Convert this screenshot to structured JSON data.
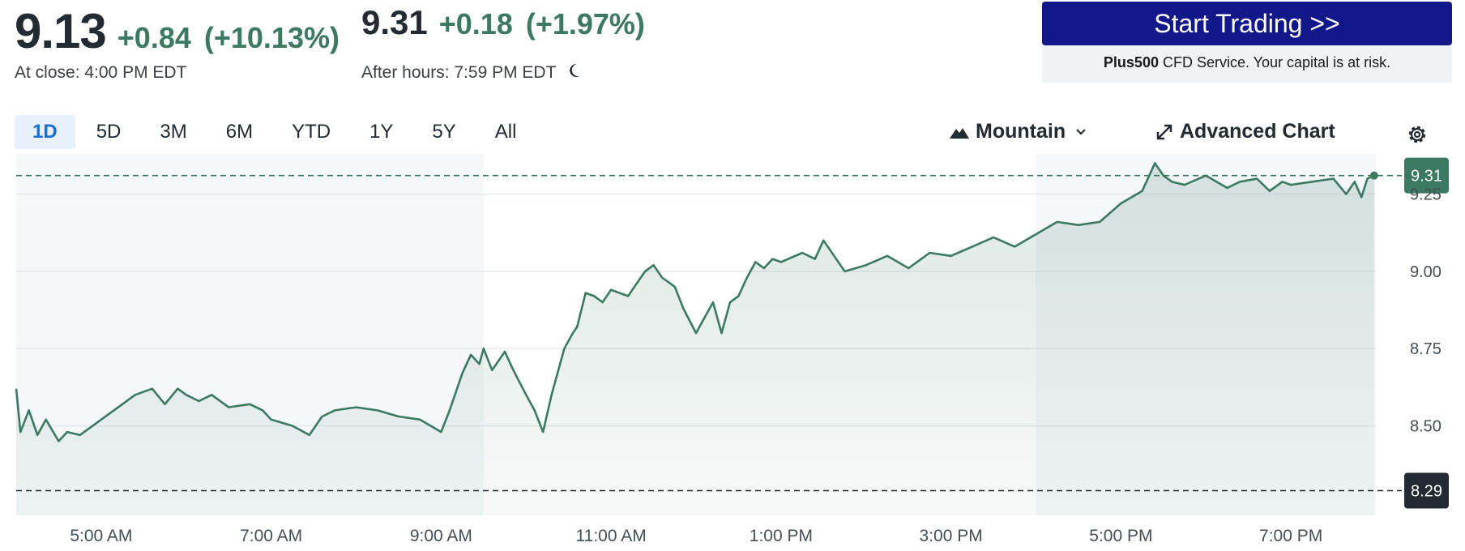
{
  "quote": {
    "close_price": "9.13",
    "close_change": "+0.84",
    "close_change_pct": "(+10.13%)",
    "close_label": "At close: 4:00 PM EDT",
    "after_price": "9.31",
    "after_change": "+0.18",
    "after_change_pct": "(+1.97%)",
    "after_label": "After hours: 7:59 PM EDT",
    "after_icon": "moon-icon"
  },
  "promo": {
    "button_label": "Start Trading >>",
    "brand": "Plus500",
    "disclaimer": " CFD Service. Your capital is at risk."
  },
  "ranges": [
    "1D",
    "5D",
    "3M",
    "6M",
    "YTD",
    "1Y",
    "5Y",
    "All"
  ],
  "active_range": "1D",
  "toolbar": {
    "chart_type_label": "Mountain",
    "chart_type_icon": "mountain-icon",
    "advanced_label": "Advanced Chart",
    "advanced_icon": "expand-icon",
    "settings_icon": "gear-icon"
  },
  "colors": {
    "line": "#3b7a61",
    "positive": "#3b7a61",
    "cta": "#12188a",
    "prev_close_badge": "#232a31",
    "shade": "#f5f7f9"
  },
  "chart_data": {
    "type": "area",
    "title": "",
    "xlabel": "",
    "ylabel": "",
    "x_ticks": [
      "5:00 AM",
      "7:00 AM",
      "9:00 AM",
      "11:00 AM",
      "1:00 PM",
      "3:00 PM",
      "5:00 PM",
      "7:00 PM"
    ],
    "y_ticks": [
      "8.50",
      "8.75",
      "9.00",
      "9.25"
    ],
    "ylim": [
      8.21,
      9.38
    ],
    "x_range": [
      "4:00 AM",
      "8:00 PM"
    ],
    "sessions": {
      "pre_market_end": "9:30 AM",
      "regular_end": "4:00 PM"
    },
    "reference_lines": [
      {
        "label": "9.31",
        "value": 9.31,
        "kind": "current"
      },
      {
        "label": "8.29",
        "value": 8.29,
        "kind": "previous_close"
      }
    ],
    "grid": true,
    "series": [
      {
        "x_hours": [
          4.0,
          4.05,
          4.15,
          4.25,
          4.35,
          4.5,
          4.6,
          4.75,
          5.0,
          5.25,
          5.4,
          5.6,
          5.75,
          5.9,
          6.0,
          6.15,
          6.3,
          6.5,
          6.75,
          6.9,
          7.0,
          7.25,
          7.45,
          7.6,
          7.75,
          8.0,
          8.25,
          8.5,
          8.75,
          9.0,
          9.1,
          9.25,
          9.35,
          9.45,
          9.5,
          9.6,
          9.75,
          9.85,
          10.0,
          10.1,
          10.2,
          10.3,
          10.45,
          10.55,
          10.6,
          10.7,
          10.8,
          10.9,
          11.0,
          11.2,
          11.4,
          11.5,
          11.6,
          11.75,
          11.85,
          12.0,
          12.1,
          12.2,
          12.3,
          12.4,
          12.5,
          12.6,
          12.7,
          12.8,
          12.9,
          13.0,
          13.25,
          13.4,
          13.5,
          13.75,
          14.0,
          14.25,
          14.5,
          14.75,
          15.0,
          15.25,
          15.5,
          15.75,
          16.0,
          16.25,
          16.5,
          16.75,
          17.0,
          17.25,
          17.4,
          17.5,
          17.6,
          17.75,
          18.0,
          18.25,
          18.4,
          18.6,
          18.75,
          18.9,
          19.0,
          19.25,
          19.5,
          19.65,
          19.75,
          19.83,
          19.9,
          19.98
        ],
        "values": [
          8.62,
          8.48,
          8.55,
          8.47,
          8.52,
          8.45,
          8.48,
          8.47,
          8.52,
          8.57,
          8.6,
          8.62,
          8.57,
          8.62,
          8.6,
          8.58,
          8.6,
          8.56,
          8.57,
          8.55,
          8.52,
          8.5,
          8.47,
          8.53,
          8.55,
          8.56,
          8.55,
          8.53,
          8.52,
          8.48,
          8.55,
          8.67,
          8.73,
          8.7,
          8.75,
          8.68,
          8.74,
          8.68,
          8.6,
          8.55,
          8.48,
          8.6,
          8.75,
          8.8,
          8.82,
          8.93,
          8.92,
          8.9,
          8.94,
          8.92,
          9.0,
          9.02,
          8.98,
          8.95,
          8.88,
          8.8,
          8.85,
          8.9,
          8.8,
          8.9,
          8.92,
          8.98,
          9.03,
          9.01,
          9.04,
          9.03,
          9.06,
          9.04,
          9.1,
          9.0,
          9.02,
          9.05,
          9.01,
          9.06,
          9.05,
          9.08,
          9.11,
          9.08,
          9.12,
          9.16,
          9.15,
          9.16,
          9.22,
          9.26,
          9.35,
          9.31,
          9.29,
          9.28,
          9.31,
          9.27,
          9.29,
          9.3,
          9.26,
          9.29,
          9.28,
          9.29,
          9.3,
          9.25,
          9.29,
          9.24,
          9.3,
          9.31
        ]
      }
    ]
  }
}
